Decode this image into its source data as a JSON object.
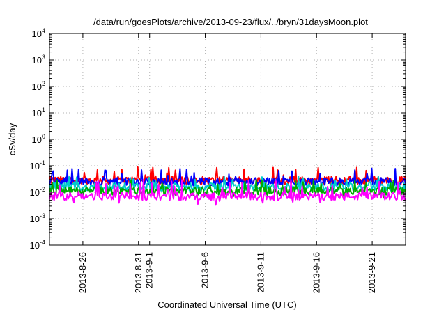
{
  "chart_data": {
    "type": "line",
    "title": "/data/run/goesPlots/archive/2013-09-23/flux/../bryn/31daysMoon.plot",
    "xlabel": "Coordinated Universal Time (UTC)",
    "ylabel": "cSv/day",
    "y_scale": "log",
    "ylim": [
      0.0001,
      10000
    ],
    "xlim": [
      "2013-08-23",
      "2013-09-24"
    ],
    "grid": true,
    "y_ticks": [
      {
        "base": "10",
        "exp": "-4",
        "value": 0.0001
      },
      {
        "base": "10",
        "exp": "-3",
        "value": 0.001
      },
      {
        "base": "10",
        "exp": "-2",
        "value": 0.01
      },
      {
        "base": "10",
        "exp": "-1",
        "value": 0.1
      },
      {
        "base": "10",
        "exp": "0",
        "value": 1
      },
      {
        "base": "10",
        "exp": "1",
        "value": 10
      },
      {
        "base": "10",
        "exp": "2",
        "value": 100
      },
      {
        "base": "10",
        "exp": "3",
        "value": 1000
      },
      {
        "base": "10",
        "exp": "4",
        "value": 10000
      }
    ],
    "x_ticks": [
      {
        "label": "2013-8-26",
        "date": "2013-08-26"
      },
      {
        "label": "2013-8-31",
        "date": "2013-08-31"
      },
      {
        "label": "2013-9-1",
        "date": "2013-09-01"
      },
      {
        "label": "2013-9-6",
        "date": "2013-09-06"
      },
      {
        "label": "2013-9-11",
        "date": "2013-09-11"
      },
      {
        "label": "2013-9-16",
        "date": "2013-09-16"
      },
      {
        "label": "2013-9-21",
        "date": "2013-09-21"
      }
    ],
    "series": [
      {
        "color": "#ff0000",
        "typical": 0.028,
        "min": 0.02,
        "max": 0.09
      },
      {
        "color": "#0000ff",
        "typical": 0.025,
        "min": 0.017,
        "max": 0.08
      },
      {
        "color": "#00cccc",
        "typical": 0.016,
        "min": 0.011,
        "max": 0.04
      },
      {
        "color": "#00aa00",
        "typical": 0.011,
        "min": 0.006,
        "max": 0.03
      },
      {
        "color": "#ff00ff",
        "typical": 0.007,
        "min": 0.003,
        "max": 0.03
      }
    ]
  }
}
